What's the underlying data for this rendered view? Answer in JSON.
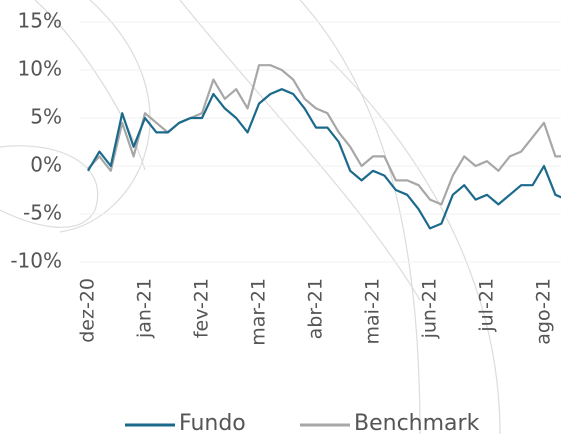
{
  "chart_data": {
    "type": "line",
    "categories": [
      "dez-20",
      null,
      null,
      null,
      null,
      "jan-21",
      null,
      null,
      null,
      null,
      "fev-21",
      null,
      null,
      null,
      null,
      "mar-21",
      null,
      null,
      null,
      null,
      "abr-21",
      null,
      null,
      null,
      null,
      "mai-21",
      null,
      null,
      null,
      null,
      "jun-21",
      null,
      null,
      null,
      null,
      "jul-21",
      null,
      null,
      null,
      null,
      "ago-21",
      null,
      null
    ],
    "series": [
      {
        "name": "Fundo",
        "color": "#1b6a8c",
        "values": [
          -0.5,
          1.5,
          0,
          5.5,
          2,
          5,
          3.5,
          3.5,
          4.5,
          5,
          5,
          7.5,
          6,
          5,
          3.5,
          6.5,
          7.5,
          8,
          7.5,
          6,
          4,
          4,
          2.5,
          -0.5,
          -1.5,
          -0.5,
          -1,
          -2.5,
          -3,
          -4.5,
          -6.5,
          -6,
          -3,
          -2,
          -3.5,
          -3,
          -4,
          -3,
          -2,
          -2,
          0,
          -3,
          -3.5
        ]
      },
      {
        "name": "Benchmark",
        "color": "#a7a7a7",
        "values": [
          -0.3,
          1,
          -0.5,
          4.5,
          1,
          5.5,
          4.5,
          3.5,
          4.5,
          5,
          5.5,
          9,
          7,
          8,
          6,
          10.5,
          10.5,
          10,
          9,
          7,
          6,
          5.5,
          3.5,
          2,
          0,
          1,
          1,
          -1.5,
          -1.5,
          -2,
          -3.5,
          -4,
          -1,
          1,
          0,
          0.5,
          -0.5,
          1,
          1.5,
          3,
          4.5,
          1,
          1
        ]
      }
    ],
    "ylim": [
      -10,
      15
    ],
    "yticks": [
      {
        "value": -10,
        "label": "-10%"
      },
      {
        "value": -5,
        "label": "-5%"
      },
      {
        "value": 0,
        "label": "0%"
      },
      {
        "value": 5,
        "label": "5%"
      },
      {
        "value": 10,
        "label": "10%"
      },
      {
        "value": 15,
        "label": "15%"
      }
    ],
    "grid": true
  }
}
